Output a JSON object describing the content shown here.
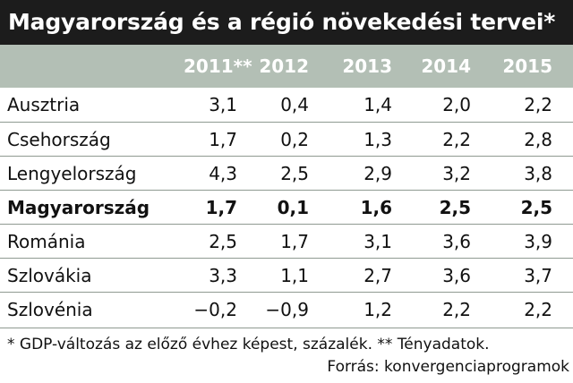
{
  "title": "Magyarország és a régió növekedési tervei*",
  "columns": [
    "2011**",
    "2012",
    "2013",
    "2014",
    "2015"
  ],
  "rows": [
    {
      "name": "Ausztria",
      "values": [
        "3,1",
        "0,4",
        "1,4",
        "2,0",
        "2,2"
      ]
    },
    {
      "name": "Csehország",
      "values": [
        "1,7",
        "0,2",
        "1,3",
        "2,2",
        "2,8"
      ]
    },
    {
      "name": "Lengyelország",
      "values": [
        "4,3",
        "2,5",
        "2,9",
        "3,2",
        "3,8"
      ]
    },
    {
      "name": "Magyarország",
      "values": [
        "1,7",
        "0,1",
        "1,6",
        "2,5",
        "2,5"
      ]
    },
    {
      "name": "Románia",
      "values": [
        "2,5",
        "1,7",
        "3,1",
        "3,6",
        "3,9"
      ]
    },
    {
      "name": "Szlovákia",
      "values": [
        "3,3",
        "1,1",
        "2,7",
        "3,6",
        "3,7"
      ]
    },
    {
      "name": "Szlovénia",
      "values": [
        "−0,2",
        "−0,9",
        "1,2",
        "2,2",
        "2,2"
      ]
    }
  ],
  "footnote": "* GDP-változás az előző évhez képest, százalék. ** Tényadatok.",
  "source": "Forrás: konvergenciaprogramok"
}
